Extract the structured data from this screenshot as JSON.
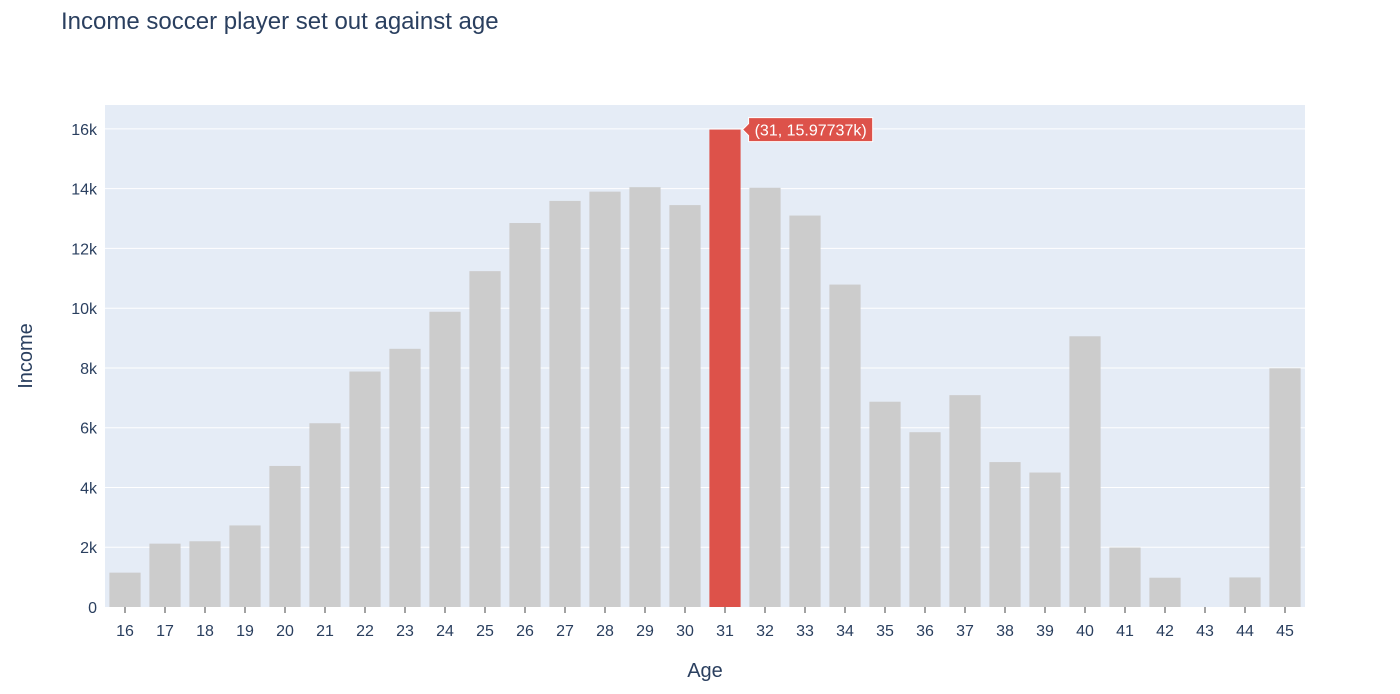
{
  "chart_data": {
    "type": "bar",
    "title": "Income soccer player set out against age",
    "xlabel": "Age",
    "ylabel": "Income",
    "categories": [
      "16",
      "17",
      "18",
      "19",
      "20",
      "21",
      "22",
      "23",
      "24",
      "25",
      "26",
      "27",
      "28",
      "29",
      "30",
      "31",
      "32",
      "33",
      "34",
      "35",
      "36",
      "37",
      "38",
      "39",
      "40",
      "41",
      "42",
      "43",
      "44",
      "45"
    ],
    "values": [
      1150,
      2120,
      2200,
      2730,
      4720,
      6150,
      7880,
      8640,
      9880,
      11240,
      12850,
      13590,
      13900,
      14050,
      13450,
      15977.37,
      14030,
      13100,
      10790,
      6870,
      5850,
      7090,
      4850,
      4500,
      9060,
      1990,
      980,
      0,
      990,
      7990
    ],
    "ylim": [
      0,
      16800
    ],
    "yticks": [
      0,
      2000,
      4000,
      6000,
      8000,
      10000,
      12000,
      14000,
      16000
    ],
    "ytick_labels": [
      "0",
      "2k",
      "4k",
      "6k",
      "8k",
      "10k",
      "12k",
      "14k",
      "16k"
    ],
    "grid": true,
    "colors": {
      "bar": "#cccccc",
      "highlight": "#dd524a",
      "plot_bg": "#e5ecf6",
      "grid": "#ffffff",
      "text": "#2a3f5f"
    },
    "highlight_index": 15,
    "hover_label": "(31, 15.97737k)"
  }
}
